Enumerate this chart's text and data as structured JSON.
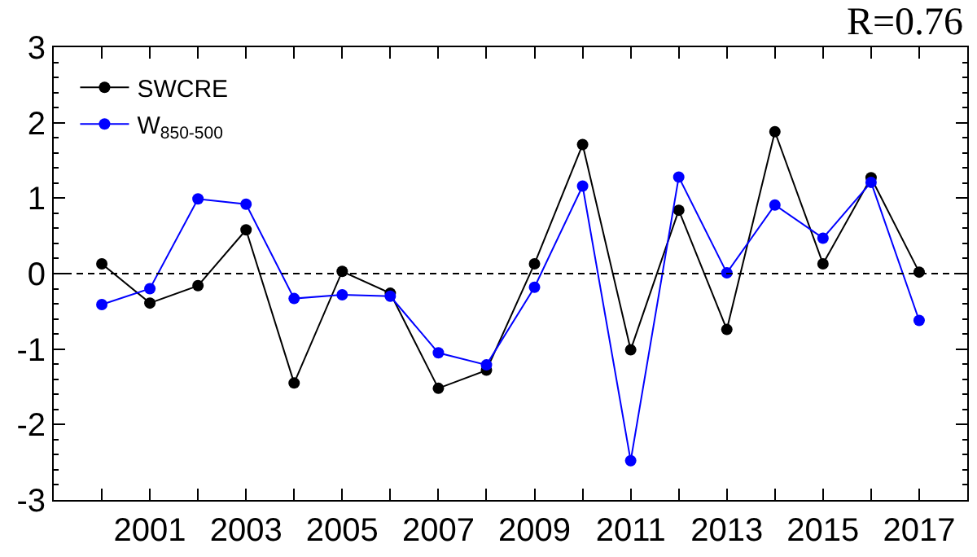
{
  "chart_data": {
    "type": "line",
    "x": [
      2000,
      2001,
      2002,
      2003,
      2004,
      2005,
      2006,
      2007,
      2008,
      2009,
      2010,
      2011,
      2012,
      2013,
      2014,
      2015,
      2016,
      2017
    ],
    "series": [
      {
        "name": "SWCRE",
        "color": "#000000",
        "values": [
          0.13,
          -0.39,
          -0.16,
          0.58,
          -1.45,
          0.03,
          -0.26,
          -1.52,
          -1.28,
          0.13,
          1.71,
          -1.01,
          0.84,
          -0.74,
          1.88,
          0.13,
          1.27,
          0.02
        ]
      },
      {
        "name": "W$_{850-500}$",
        "color": "#0000ff",
        "values": [
          -0.41,
          -0.2,
          0.99,
          0.92,
          -0.33,
          -0.28,
          -0.3,
          -1.05,
          -1.21,
          -0.18,
          1.16,
          -2.48,
          1.28,
          0.01,
          0.91,
          0.47,
          1.21,
          -0.62
        ]
      }
    ],
    "xlim": [
      1999,
      2018
    ],
    "xticks": [
      {
        "value": 2000,
        "label": null
      },
      2001,
      {
        "value": 2002,
        "label": null
      },
      2003,
      {
        "value": 2004,
        "label": null
      },
      2005,
      {
        "value": 2006,
        "label": null
      },
      2007,
      {
        "value": 2008,
        "label": null
      },
      2009,
      {
        "value": 2010,
        "label": null
      },
      2011,
      {
        "value": 2012,
        "label": null
      },
      2013,
      {
        "value": 2014,
        "label": null
      },
      2015,
      {
        "value": 2016,
        "label": null
      },
      2017
    ],
    "ylim": [
      -3,
      3
    ],
    "yticks": [
      -3,
      -2,
      -1,
      0,
      1,
      2,
      3
    ],
    "ref_lines": [
      {
        "axis": "y",
        "value": 0,
        "label": null,
        "color": "#000000",
        "line_style": "dashed"
      }
    ],
    "annotations": [
      "R=0.76"
    ],
    "legend": "top left",
    "marker": "circle",
    "line_style": "solid"
  }
}
